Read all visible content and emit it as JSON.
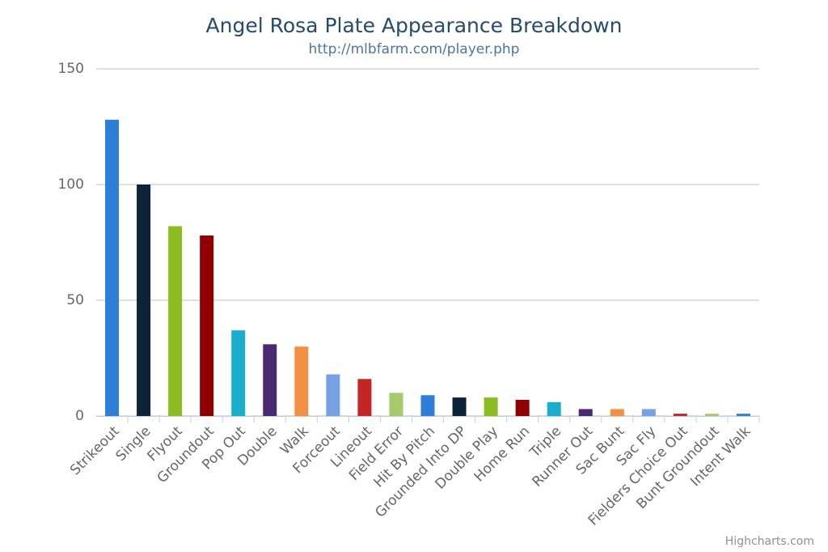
{
  "chart_data": {
    "type": "bar",
    "title": "Angel Rosa Plate Appearance Breakdown",
    "subtitle": "http://mlbfarm.com/player.php",
    "credits": "Highcharts.com",
    "categories": [
      "Strikeout",
      "Single",
      "Flyout",
      "Groundout",
      "Pop Out",
      "Double",
      "Walk",
      "Forceout",
      "Lineout",
      "Field Error",
      "Hit By Pitch",
      "Grounded Into DP",
      "Double Play",
      "Home Run",
      "Triple",
      "Runner Out",
      "Sac Bunt",
      "Sac Fly",
      "Fielders Choice Out",
      "Bunt Groundout",
      "Intent Walk"
    ],
    "values": [
      128,
      100,
      82,
      78,
      37,
      31,
      30,
      18,
      16,
      10,
      9,
      8,
      8,
      7,
      6,
      3,
      3,
      3,
      1,
      1,
      1
    ],
    "colors": [
      "#2f7ed8",
      "#0d233a",
      "#8bbc21",
      "#910000",
      "#1aadce",
      "#492970",
      "#f28f43",
      "#77a1e5",
      "#c42525",
      "#a6c96a",
      "#2f7ed8",
      "#0d233a",
      "#8bbc21",
      "#910000",
      "#1aadce",
      "#492970",
      "#f28f43",
      "#77a1e5",
      "#c42525",
      "#a6c96a",
      "#2f7ed8"
    ],
    "ylim": [
      0,
      150
    ],
    "yticks": [
      0,
      50,
      100,
      150
    ],
    "grid": true
  }
}
